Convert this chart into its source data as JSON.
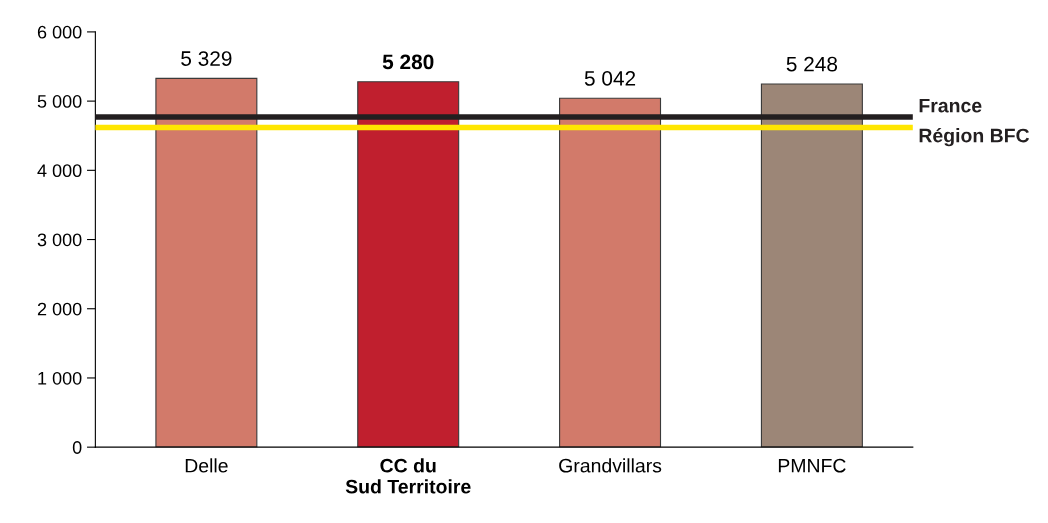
{
  "chart_data": {
    "type": "bar",
    "categories": [
      "Delle",
      "CC du\nSud Territoire",
      "Grandvillars",
      "PMNFC"
    ],
    "values": [
      5329,
      5280,
      5042,
      5248
    ],
    "colors": [
      "#d27a6a",
      "#c01f2e",
      "#d27a6a",
      "#9c8677"
    ],
    "value_labels": [
      "5 329",
      "5 280",
      "5 042",
      "5 248"
    ],
    "ylim": [
      0,
      6000
    ],
    "yticks": [
      {
        "value": 0,
        "label": "0"
      },
      {
        "value": 1000,
        "label": "1 000"
      },
      {
        "value": 2000,
        "label": "2 000"
      },
      {
        "value": 3000,
        "label": "3 000"
      },
      {
        "value": 4000,
        "label": "4 000"
      },
      {
        "value": 5000,
        "label": "5 000"
      },
      {
        "value": 6000,
        "label": "6 000"
      }
    ],
    "ref_lines": [
      {
        "axis": "y",
        "value": 4770,
        "label": "France",
        "color": "#231f20"
      },
      {
        "axis": "y",
        "value": 4620,
        "label": "Région BFC",
        "color": "#ffe600"
      }
    ],
    "grid": false
  }
}
